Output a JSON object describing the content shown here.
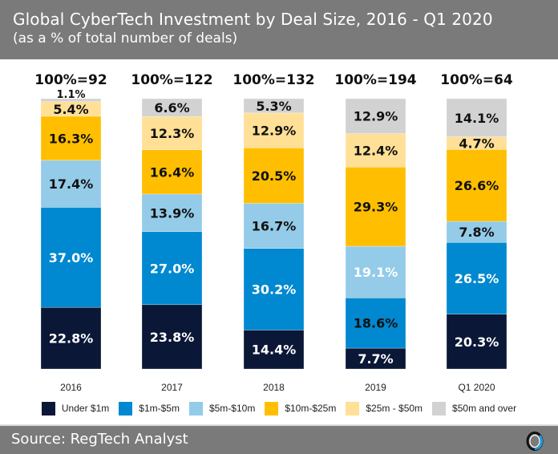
{
  "header": {
    "title": "Global CyberTech Investment by Deal Size, 2016 - Q1 2020",
    "subtitle": "(as a % of total number of deals)"
  },
  "footer": {
    "source": "Source: RegTech Analyst",
    "logo_icon": "regtech-analyst-ring-logo"
  },
  "colors": {
    "header_bg": "#7a7a7a",
    "under_1m": "#0b1736",
    "1m_5m": "#0088d0",
    "5m_10m": "#93cbe8",
    "10m_25m": "#ffbf00",
    "25m_50m": "#ffe096",
    "50m_over": "#d2d2d2"
  },
  "chart_data": {
    "type": "bar",
    "stacked": true,
    "title": "Global CyberTech Investment by Deal Size, 2016 - Q1 2020",
    "subtitle": "(as a % of total number of deals)",
    "xlabel": "",
    "ylabel": "",
    "ylim": [
      0,
      100
    ],
    "grid": false,
    "legend_position": "bottom",
    "categories": [
      "2016",
      "2017",
      "2018",
      "2019",
      "Q1 2020"
    ],
    "totals": [
      "100%=92",
      "100%=122",
      "100%=132",
      "100%=194",
      "100%=64"
    ],
    "series": [
      {
        "name": "Under $1m",
        "color": "#0b1736",
        "values": [
          22.8,
          23.8,
          14.4,
          7.7,
          20.3
        ],
        "labels": [
          "22.8%",
          "23.8%",
          "14.4%",
          "7.7%",
          "20.3%"
        ],
        "label_colors": [
          "#ffffff",
          "#ffffff",
          "#ffffff",
          "#ffffff",
          "#ffffff"
        ]
      },
      {
        "name": "$1m-$5m",
        "color": "#0088d0",
        "values": [
          37.0,
          27.0,
          30.2,
          18.6,
          26.5
        ],
        "labels": [
          "37.0%",
          "27.0%",
          "30.2%",
          "18.6%",
          "26.5%"
        ],
        "label_colors": [
          "#ffffff",
          "#ffffff",
          "#ffffff",
          "#111111",
          "#ffffff"
        ]
      },
      {
        "name": "$5m-$10m",
        "color": "#93cbe8",
        "values": [
          17.4,
          13.9,
          16.7,
          19.1,
          7.8
        ],
        "labels": [
          "17.4%",
          "13.9%",
          "16.7%",
          "19.1%",
          "7.8%"
        ],
        "label_colors": [
          "#111111",
          "#111111",
          "#111111",
          "#ffffff",
          "#111111"
        ]
      },
      {
        "name": "$10m-$25m",
        "color": "#ffbf00",
        "values": [
          16.3,
          16.4,
          20.5,
          29.3,
          26.6
        ],
        "labels": [
          "16.3%",
          "16.4%",
          "20.5%",
          "29.3%",
          "26.6%"
        ],
        "label_colors": [
          "#111111",
          "#111111",
          "#111111",
          "#111111",
          "#111111"
        ]
      },
      {
        "name": "$25m - $50m",
        "color": "#ffe096",
        "values": [
          5.4,
          12.3,
          12.9,
          12.4,
          4.7
        ],
        "labels": [
          "5.4%",
          "12.3%",
          "12.9%",
          "12.4%",
          "4.7%"
        ],
        "label_colors": [
          "#111111",
          "#111111",
          "#111111",
          "#111111",
          "#111111"
        ]
      },
      {
        "name": "$50m and over",
        "color": "#d2d2d2",
        "values": [
          1.1,
          6.6,
          5.3,
          12.9,
          14.1
        ],
        "labels": [
          "1.1%",
          "6.6%",
          "5.3%",
          "12.9%",
          "14.1%"
        ],
        "label_colors": [
          "#111111",
          "#111111",
          "#111111",
          "#111111",
          "#111111"
        ]
      }
    ]
  },
  "legend": {
    "items": [
      {
        "label": "Under $1m",
        "color": "#0b1736"
      },
      {
        "label": "$1m-$5m",
        "color": "#0088d0"
      },
      {
        "label": "$5m-$10m",
        "color": "#93cbe8"
      },
      {
        "label": "$10m-$25m",
        "color": "#ffbf00"
      },
      {
        "label": "$25m - $50m",
        "color": "#ffe096"
      },
      {
        "label": "$50m and over",
        "color": "#d2d2d2"
      }
    ]
  }
}
